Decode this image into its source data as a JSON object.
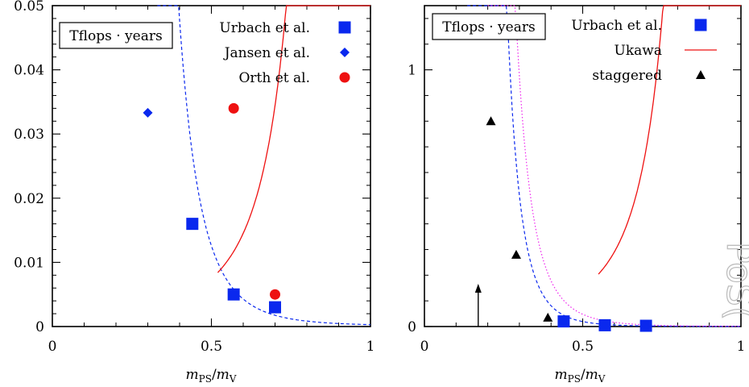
{
  "chart_data": [
    {
      "type": "scatter",
      "xlabel_main": "m",
      "xlabel_sub1": "PS",
      "xlabel_sep": "/",
      "xlabel_main2": "m",
      "xlabel_sub2": "V",
      "xlim": [
        0,
        1
      ],
      "ylim": [
        0,
        0.05
      ],
      "xticks": [
        0,
        0.5,
        1
      ],
      "xtick_labels": [
        "0",
        "0.5",
        "1"
      ],
      "yticks": [
        0,
        0.01,
        0.02,
        0.03,
        0.04,
        0.05
      ],
      "ytick_labels": [
        "0",
        "0.01",
        "0.02",
        "0.03",
        "0.04",
        "0.05"
      ],
      "box_label": "Tflops · years",
      "legend_position": "top-right",
      "series": [
        {
          "name": "Urbach et al.",
          "marker": "square",
          "color": "#0a28ee",
          "points": [
            [
              0.44,
              0.016
            ],
            [
              0.57,
              0.005
            ],
            [
              0.7,
              0.003
            ]
          ]
        },
        {
          "name": "Jansen et al.",
          "marker": "diamond",
          "color": "#0a28ee",
          "points": [
            [
              0.3,
              0.0333
            ]
          ]
        },
        {
          "name": "Orth et al.",
          "marker": "circle",
          "color": "#ee1111",
          "points": [
            [
              0.57,
              0.034
            ],
            [
              0.7,
              0.005
            ]
          ]
        }
      ],
      "curves": [
        {
          "style": "dashed",
          "color": "#0a28ee"
        },
        {
          "style": "solid",
          "color": "#ee1111"
        }
      ]
    },
    {
      "type": "scatter",
      "xlabel_main": "m",
      "xlabel_sub1": "PS",
      "xlabel_sep": "/",
      "xlabel_main2": "m",
      "xlabel_sub2": "V",
      "xlim": [
        0,
        1
      ],
      "ylim": [
        0,
        1.25
      ],
      "xticks": [
        0,
        0.5,
        1
      ],
      "xtick_labels": [
        "0",
        "0.5",
        "1"
      ],
      "yticks": [
        0,
        1
      ],
      "ytick_labels": [
        "0",
        "1"
      ],
      "box_label": "Tflops · years",
      "legend_position": "top-right",
      "series": [
        {
          "name": "Urbach et al.",
          "marker": "square",
          "color": "#0a28ee",
          "points": [
            [
              0.44,
              0.02
            ],
            [
              0.57,
              0.005
            ],
            [
              0.7,
              0.003
            ]
          ]
        },
        {
          "name": "Ukawa",
          "marker": "line",
          "color": "#ee1111",
          "points": []
        },
        {
          "name": "staggered",
          "marker": "triangle",
          "color": "#000000",
          "points": [
            [
              0.21,
              0.8
            ],
            [
              0.29,
              0.28
            ],
            [
              0.39,
              0.035
            ]
          ]
        }
      ],
      "curves": [
        {
          "style": "dashed",
          "color": "#0a28ee"
        },
        {
          "style": "dotted",
          "color": "#ee22ee"
        },
        {
          "style": "solid",
          "color": "#ee1111"
        }
      ],
      "annotation": {
        "type": "arrow",
        "x": 0.17,
        "y_from": 0.0,
        "y_to": 0.16
      }
    }
  ],
  "watermark": {
    "text": "PoS("
  }
}
